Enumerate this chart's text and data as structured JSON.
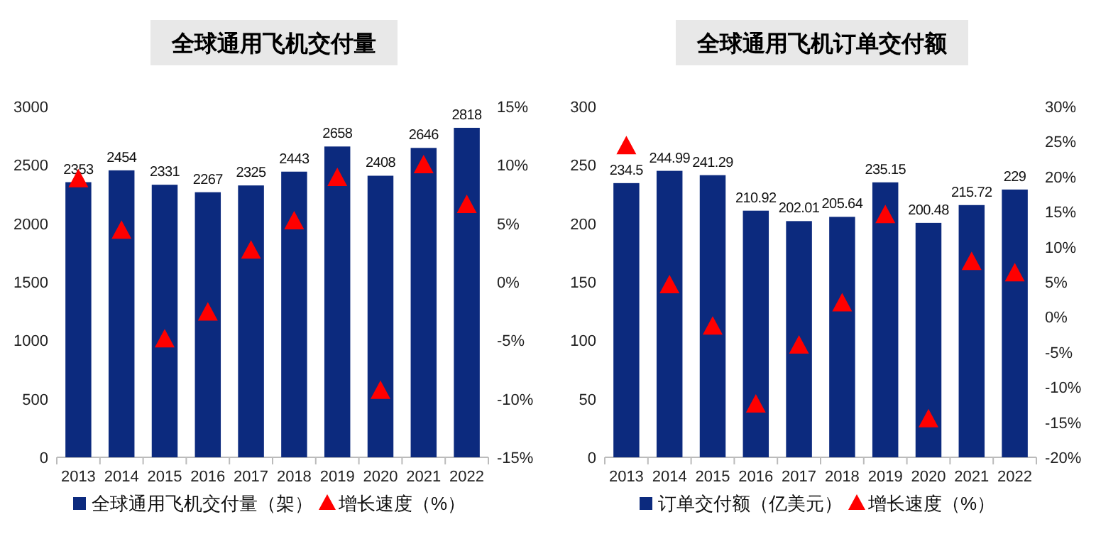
{
  "chart_data": [
    {
      "type": "bar",
      "title": "全球通用飞机交付量",
      "categories": [
        "2013",
        "2014",
        "2015",
        "2016",
        "2017",
        "2018",
        "2019",
        "2020",
        "2021",
        "2022"
      ],
      "legend": "bottom",
      "ylim": [
        0,
        3000
      ],
      "yticks": [
        0,
        500,
        1000,
        1500,
        2000,
        2500,
        3000
      ],
      "y2lim": [
        -15,
        15
      ],
      "y2ticks": [
        {
          "value": -15,
          "label": "-15%"
        },
        {
          "value": -10,
          "label": "-10%"
        },
        {
          "value": -5,
          "label": "-5%"
        },
        {
          "value": 0,
          "label": "0%"
        },
        {
          "value": 5,
          "label": "5%"
        },
        {
          "value": 10,
          "label": "10%"
        },
        {
          "value": 15,
          "label": "15%"
        }
      ],
      "series": [
        {
          "name": "全球通用飞机交付量（架）",
          "color": "#0c2a7e",
          "values": [
            2353,
            2454,
            2331,
            2267,
            2325,
            2443,
            2658,
            2408,
            2646,
            2818
          ],
          "value_labels": [
            "2353",
            "2454",
            "2331",
            "2267",
            "2325",
            "2443",
            "2658",
            "2408",
            "2646",
            "2818"
          ]
        },
        {
          "name": "增长速度（%）",
          "type": "scatter",
          "marker": "triangle",
          "axis": "y2",
          "color": "#ff0000",
          "values": [
            8.7,
            4.3,
            -5.0,
            -2.7,
            2.6,
            5.1,
            8.8,
            -9.4,
            9.9,
            6.5
          ]
        }
      ]
    },
    {
      "type": "bar",
      "title": "全球通用飞机订单交付额",
      "categories": [
        "2013",
        "2014",
        "2015",
        "2016",
        "2017",
        "2018",
        "2019",
        "2020",
        "2021",
        "2022"
      ],
      "legend": "bottom",
      "ylim": [
        0,
        300
      ],
      "yticks": [
        0,
        50,
        100,
        150,
        200,
        250,
        300
      ],
      "y2lim": [
        -20,
        30
      ],
      "y2ticks": [
        {
          "value": -20,
          "label": "-20%"
        },
        {
          "value": -15,
          "label": "-15%"
        },
        {
          "value": -10,
          "label": "-10%"
        },
        {
          "value": -5,
          "label": "-5%"
        },
        {
          "value": 0,
          "label": "0%"
        },
        {
          "value": 5,
          "label": "5%"
        },
        {
          "value": 10,
          "label": "10%"
        },
        {
          "value": 15,
          "label": "15%"
        },
        {
          "value": 20,
          "label": "20%"
        },
        {
          "value": 25,
          "label": "25%"
        },
        {
          "value": 30,
          "label": "30%"
        }
      ],
      "series": [
        {
          "name": "订单交付额（亿美元）",
          "color": "#0c2a7e",
          "values": [
            234.5,
            244.99,
            241.29,
            210.92,
            202.01,
            205.64,
            235.15,
            200.48,
            215.72,
            229
          ],
          "value_labels": [
            "234.5",
            "244.99",
            "241.29",
            "210.92",
            "202.01",
            "205.64",
            "235.15",
            "200.48",
            "215.72",
            "229"
          ]
        },
        {
          "name": "增长速度（%）",
          "type": "scatter",
          "marker": "triangle",
          "axis": "y2",
          "color": "#ff0000",
          "values": [
            24.2,
            4.4,
            -1.5,
            -12.6,
            -4.2,
            1.8,
            14.4,
            -14.7,
            7.7,
            6.1
          ]
        }
      ]
    }
  ]
}
